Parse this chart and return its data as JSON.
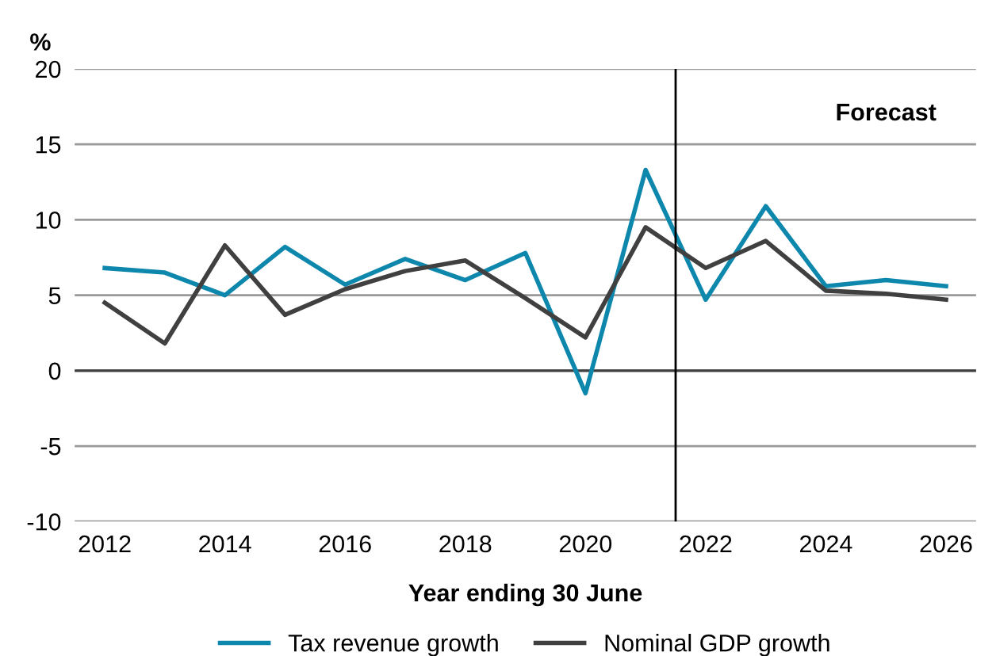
{
  "chart_data": {
    "type": "line",
    "ylabel": "%",
    "xlabel": "Year ending 30 June",
    "x": [
      2012,
      2013,
      2014,
      2015,
      2016,
      2017,
      2018,
      2019,
      2020,
      2021,
      2022,
      2023,
      2024,
      2025,
      2026
    ],
    "series": [
      {
        "name": "Tax revenue growth",
        "color": "#0e87ad",
        "values": [
          6.8,
          6.5,
          5.0,
          8.2,
          5.7,
          7.4,
          6.0,
          7.8,
          -1.5,
          13.3,
          4.7,
          10.9,
          5.6,
          6.0,
          5.6
        ]
      },
      {
        "name": "Nominal GDP growth",
        "color": "#404040",
        "values": [
          4.5,
          1.8,
          8.3,
          3.7,
          5.4,
          6.6,
          7.3,
          4.8,
          2.2,
          9.5,
          6.8,
          8.6,
          5.3,
          5.1,
          4.7
        ]
      }
    ],
    "xlim": [
      2011.5,
      2026.5
    ],
    "xticks": [
      2012,
      2014,
      2016,
      2018,
      2020,
      2022,
      2024,
      2026
    ],
    "ylim": [
      -10,
      20
    ],
    "yticks": [
      -10,
      -5,
      0,
      5,
      10,
      15,
      20
    ],
    "ref_lines": [
      {
        "axis": "x",
        "value": 2021.5,
        "color": "#000000"
      }
    ],
    "annotations": [
      "Forecast"
    ],
    "grid": "y",
    "legend": "bottom",
    "marker": "none",
    "line_style": "solid"
  }
}
